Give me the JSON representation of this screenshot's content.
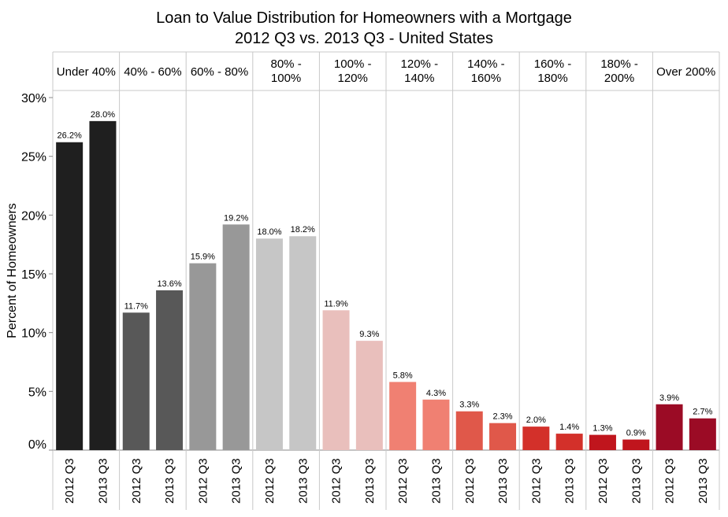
{
  "chart_data": {
    "type": "bar",
    "title": "Loan to Value Distribution for Homeowners with a Mortgage",
    "subtitle": "2012 Q3 vs. 2013 Q3 - United States",
    "ylabel": "Percent of Homeowners",
    "ylim": [
      0,
      30
    ],
    "yticks": [
      0,
      5,
      10,
      15,
      20,
      25,
      30
    ],
    "ytick_labels": [
      "0%",
      "5%",
      "10%",
      "15%",
      "20%",
      "25%",
      "30%"
    ],
    "grid": false,
    "sub_categories": [
      "2012 Q3",
      "2013 Q3"
    ],
    "groups": [
      {
        "label": [
          "Under 40%"
        ],
        "color": "#1f1f1f",
        "values": [
          26.2,
          28.0
        ],
        "value_labels": [
          "26.2%",
          "28.0%"
        ]
      },
      {
        "label": [
          "40% - 60%"
        ],
        "color": "#585858",
        "values": [
          11.7,
          13.6
        ],
        "value_labels": [
          "11.7%",
          "13.6%"
        ]
      },
      {
        "label": [
          "60% - 80%"
        ],
        "color": "#989898",
        "values": [
          15.9,
          19.2
        ],
        "value_labels": [
          "15.9%",
          "19.2%"
        ]
      },
      {
        "label": [
          "80% -",
          "100%"
        ],
        "color": "#c6c6c6",
        "values": [
          18.0,
          18.2
        ],
        "value_labels": [
          "18.0%",
          "18.2%"
        ]
      },
      {
        "label": [
          "100% -",
          "120%"
        ],
        "color": "#e9bfbc",
        "values": [
          11.9,
          9.3
        ],
        "value_labels": [
          "11.9%",
          "9.3%"
        ]
      },
      {
        "label": [
          "120% -",
          "140%"
        ],
        "color": "#f08072",
        "values": [
          5.8,
          4.3
        ],
        "value_labels": [
          "5.8%",
          "4.3%"
        ]
      },
      {
        "label": [
          "140% -",
          "160%"
        ],
        "color": "#e0584a",
        "values": [
          3.3,
          2.3
        ],
        "value_labels": [
          "3.3%",
          "2.3%"
        ]
      },
      {
        "label": [
          "160% -",
          "180%"
        ],
        "color": "#d3302a",
        "values": [
          2.0,
          1.4
        ],
        "value_labels": [
          "2.0%",
          "1.4%"
        ]
      },
      {
        "label": [
          "180% -",
          "200%"
        ],
        "color": "#c0151d",
        "values": [
          1.3,
          0.9
        ],
        "value_labels": [
          "1.3%",
          "0.9%"
        ]
      },
      {
        "label": [
          "Over 200%"
        ],
        "color": "#9b0b25",
        "values": [
          3.9,
          2.7
        ],
        "value_labels": [
          "3.9%",
          "2.7%"
        ]
      }
    ]
  }
}
